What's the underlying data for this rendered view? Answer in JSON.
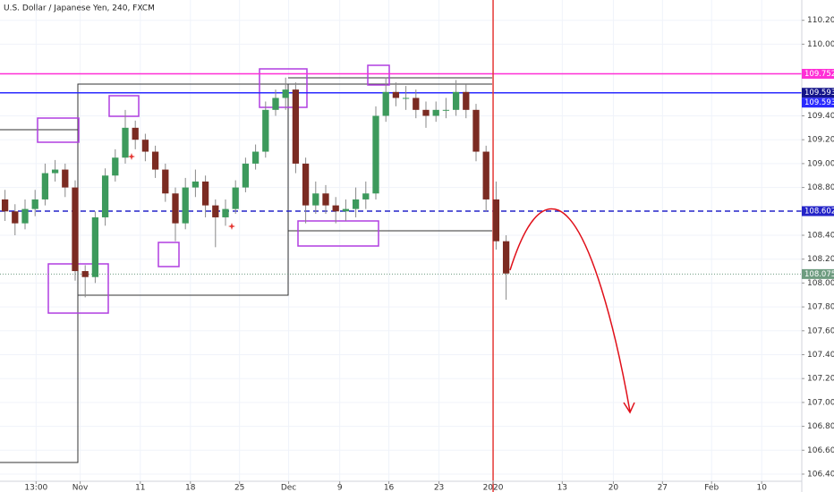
{
  "chart_data": {
    "type": "candlestick",
    "title": "U.S. Dollar / Japanese Yen, 240, FXCM",
    "x": [
      0.5,
      1.5,
      2.5,
      3.5,
      4.5,
      5.5,
      6.5,
      7.5,
      8.5,
      9.5,
      10.5,
      11.5,
      12.5,
      13.5,
      14.5,
      15.5,
      16.5,
      17.5,
      18.5,
      19.5,
      20.5,
      21.5,
      22.5,
      23.5,
      24.5,
      25.5,
      26.5,
      27.5,
      28.5,
      29.5,
      30.5,
      31.5,
      32.5,
      33.5,
      34.5,
      35.5,
      36.5,
      37.5,
      38.5,
      39.5,
      40.5,
      41.5,
      42.5,
      43.5,
      44.5,
      45.5,
      46.5,
      47.5,
      48.5,
      49.5,
      50.5
    ],
    "open": [
      108.7,
      108.6,
      108.5,
      108.62,
      108.7,
      108.92,
      108.95,
      108.8,
      108.1,
      108.05,
      108.55,
      108.9,
      109.05,
      109.3,
      109.2,
      109.1,
      108.95,
      108.75,
      108.5,
      108.8,
      108.85,
      108.65,
      108.55,
      108.62,
      108.8,
      109.0,
      109.1,
      109.45,
      109.55,
      109.62,
      109.0,
      108.65,
      108.75,
      108.65,
      108.6,
      108.62,
      108.7,
      108.75,
      109.4,
      109.6,
      109.55,
      109.55,
      109.45,
      109.4,
      109.45,
      109.45,
      109.6,
      109.45,
      109.1,
      108.7,
      108.35
    ],
    "high": [
      108.78,
      108.66,
      108.7,
      108.78,
      109.0,
      109.03,
      109.0,
      108.86,
      108.15,
      108.6,
      108.96,
      109.12,
      109.45,
      109.36,
      109.25,
      109.15,
      109.0,
      108.8,
      108.88,
      108.95,
      108.9,
      108.7,
      108.7,
      108.86,
      109.05,
      109.16,
      109.52,
      109.62,
      109.72,
      109.68,
      109.05,
      108.85,
      108.82,
      108.72,
      108.7,
      108.8,
      108.85,
      109.48,
      109.72,
      109.68,
      109.65,
      109.62,
      109.52,
      109.52,
      109.55,
      109.7,
      109.66,
      109.5,
      109.15,
      108.85,
      108.4
    ],
    "low": [
      108.52,
      108.4,
      108.45,
      108.56,
      108.65,
      108.85,
      108.72,
      108.02,
      107.88,
      108.0,
      108.48,
      108.85,
      109.0,
      109.12,
      109.02,
      108.88,
      108.68,
      108.35,
      108.45,
      108.72,
      108.55,
      108.3,
      108.48,
      108.58,
      108.76,
      108.95,
      109.05,
      109.4,
      109.45,
      108.92,
      108.5,
      108.58,
      108.58,
      108.5,
      108.52,
      108.55,
      108.62,
      108.7,
      109.35,
      109.48,
      109.45,
      109.38,
      109.3,
      109.35,
      109.38,
      109.4,
      109.38,
      109.02,
      108.6,
      108.28,
      107.86
    ],
    "close": [
      108.6,
      108.5,
      108.62,
      108.7,
      108.92,
      108.95,
      108.8,
      108.1,
      108.05,
      108.55,
      108.9,
      109.05,
      109.3,
      109.2,
      109.1,
      108.95,
      108.75,
      108.5,
      108.8,
      108.85,
      108.65,
      108.55,
      108.62,
      108.8,
      109.0,
      109.1,
      109.45,
      109.55,
      109.62,
      109.0,
      108.65,
      108.75,
      108.65,
      108.6,
      108.62,
      108.7,
      108.75,
      109.4,
      109.6,
      109.55,
      109.55,
      109.45,
      109.4,
      109.45,
      109.45,
      109.6,
      109.45,
      109.1,
      108.7,
      108.35,
      108.08
    ],
    "up_color": "#3d9a5c",
    "down_color": "#7b2b22",
    "xlim": [
      0,
      80
    ],
    "ylim": [
      106.34,
      110.37
    ],
    "xticks": [
      {
        "value": 3.6,
        "label": "13:00"
      },
      {
        "value": 8.0,
        "label": "Nov"
      },
      {
        "value": 14.0,
        "label": "11"
      },
      {
        "value": 19.0,
        "label": "18"
      },
      {
        "value": 23.9,
        "label": "25"
      },
      {
        "value": 28.8,
        "label": "Dec"
      },
      {
        "value": 33.9,
        "label": "9"
      },
      {
        "value": 38.8,
        "label": "16"
      },
      {
        "value": 43.8,
        "label": "23"
      },
      {
        "value": 49.2,
        "label": "2020"
      },
      {
        "value": 56.1,
        "label": "13"
      },
      {
        "value": 61.2,
        "label": "20"
      },
      {
        "value": 66.1,
        "label": "27"
      },
      {
        "value": 71.0,
        "label": "Feb"
      },
      {
        "value": 76.0,
        "label": "10"
      }
    ],
    "yticks": [
      {
        "value": 110.2,
        "label": "110.200"
      },
      {
        "value": 110.0,
        "label": "110.000"
      },
      {
        "value": 109.4,
        "label": "109.400"
      },
      {
        "value": 109.2,
        "label": "109.200"
      },
      {
        "value": 109.0,
        "label": "109.000"
      },
      {
        "value": 108.8,
        "label": "108.800"
      },
      {
        "value": 108.4,
        "label": "108.400"
      },
      {
        "value": 108.2,
        "label": "108.200"
      },
      {
        "value": 108.0,
        "label": "108.000"
      },
      {
        "value": 107.8,
        "label": "107.800"
      },
      {
        "value": 107.6,
        "label": "107.600"
      },
      {
        "value": 107.4,
        "label": "107.400"
      },
      {
        "value": 107.2,
        "label": "107.200"
      },
      {
        "value": 107.0,
        "label": "107.000"
      },
      {
        "value": 106.8,
        "label": "106.800"
      },
      {
        "value": 106.6,
        "label": "106.600"
      },
      {
        "value": 106.4,
        "label": "106.400"
      }
    ],
    "grid": true,
    "hlines": [
      {
        "value": 109.752,
        "color": "#ff2fd6",
        "style": "solid"
      },
      {
        "value": 109.593,
        "color": "#14148a",
        "style": "solid"
      },
      {
        "value": 109.593,
        "color": "#2a2aff",
        "style": "solid"
      },
      {
        "value": 108.602,
        "color": "#2424c8",
        "style": "dashed"
      },
      {
        "value": 108.075,
        "color": "#6e9c80",
        "style": "dotted"
      }
    ],
    "vline": {
      "x": 49.2,
      "color": "#e53935"
    }
  }
}
